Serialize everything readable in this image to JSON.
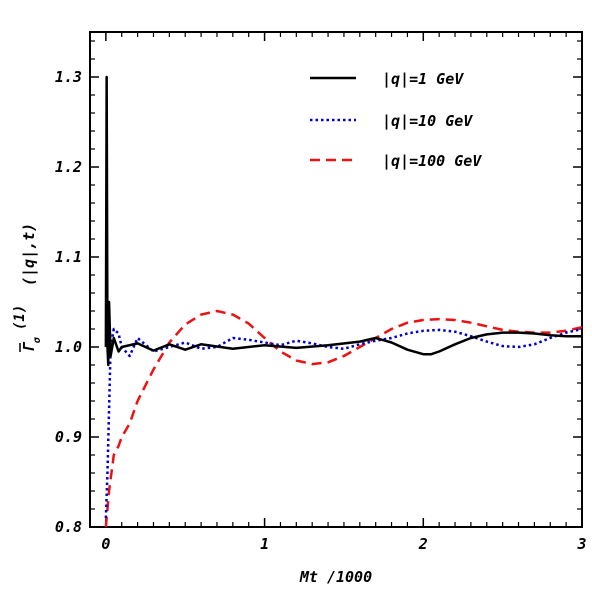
{
  "chart_data": {
    "type": "line",
    "xlabel": "Mt  /1000",
    "ylabel": "Γ̄ (1) (|q|,t)",
    "ylabel_parts": {
      "main": "Γ",
      "sub": "σ",
      "sup": "(1)",
      "args": "(|q|,t)"
    },
    "xlim": [
      -0.1,
      3.0
    ],
    "ylim": [
      0.8,
      1.35
    ],
    "x_ticks": [
      0,
      1,
      2,
      3
    ],
    "x_tick_labels": [
      "0",
      "1",
      "2",
      "3"
    ],
    "y_ticks": [
      0.8,
      0.9,
      1.0,
      1.1,
      1.2,
      1.3
    ],
    "y_tick_labels": [
      "0.8",
      "0.9",
      "1.0",
      "1.1",
      "1.2",
      "1.3"
    ],
    "grid": false,
    "legend_position": "top-right",
    "series": [
      {
        "name": "|q|=1  GeV",
        "color": "#000000",
        "style": "solid",
        "x": [
          0.0,
          0.005,
          0.01,
          0.015,
          0.02,
          0.03,
          0.05,
          0.08,
          0.1,
          0.2,
          0.3,
          0.4,
          0.5,
          0.6,
          0.8,
          1.0,
          1.2,
          1.4,
          1.6,
          1.7,
          1.8,
          1.9,
          2.0,
          2.05,
          2.1,
          2.2,
          2.3,
          2.4,
          2.5,
          2.6,
          2.7,
          2.8,
          2.9,
          3.0
        ],
        "y": [
          1.0,
          1.3,
          1.0,
          0.98,
          1.05,
          0.99,
          1.01,
          0.995,
          1.0,
          1.004,
          0.996,
          1.003,
          0.997,
          1.003,
          0.998,
          1.002,
          0.999,
          1.002,
          1.006,
          1.01,
          1.005,
          0.997,
          0.992,
          0.992,
          0.995,
          1.003,
          1.01,
          1.014,
          1.016,
          1.016,
          1.015,
          1.013,
          1.012,
          1.012
        ]
      },
      {
        "name": "|q|=10  GeV",
        "color": "#0000cc",
        "style": "dotted",
        "x": [
          0.0,
          0.01,
          0.02,
          0.03,
          0.05,
          0.08,
          0.1,
          0.15,
          0.2,
          0.3,
          0.4,
          0.5,
          0.6,
          0.7,
          0.8,
          0.9,
          1.0,
          1.1,
          1.2,
          1.3,
          1.4,
          1.5,
          1.6,
          1.7,
          1.8,
          1.9,
          2.0,
          2.1,
          2.2,
          2.3,
          2.4,
          2.5,
          2.6,
          2.7,
          2.8,
          2.9,
          3.0
        ],
        "y": [
          0.81,
          0.86,
          0.93,
          1.0,
          1.02,
          1.015,
          1.0,
          0.99,
          1.01,
          0.995,
          1.0,
          1.005,
          0.998,
          1.0,
          1.01,
          1.008,
          1.005,
          1.002,
          1.007,
          1.004,
          1.0,
          0.998,
          1.003,
          1.007,
          1.01,
          1.015,
          1.018,
          1.019,
          1.017,
          1.012,
          1.006,
          1.001,
          1.0,
          1.003,
          1.01,
          1.016,
          1.02
        ]
      },
      {
        "name": "|q|=100  GeV",
        "color": "#ee1111",
        "style": "dashed",
        "x": [
          0.0,
          0.02,
          0.05,
          0.08,
          0.1,
          0.15,
          0.2,
          0.3,
          0.4,
          0.5,
          0.6,
          0.7,
          0.8,
          0.9,
          1.0,
          1.1,
          1.2,
          1.3,
          1.4,
          1.5,
          1.6,
          1.7,
          1.8,
          1.9,
          2.0,
          2.1,
          2.2,
          2.3,
          2.4,
          2.5,
          2.6,
          2.7,
          2.8,
          2.9,
          3.0
        ],
        "y": [
          0.8,
          0.84,
          0.88,
          0.89,
          0.9,
          0.915,
          0.94,
          0.975,
          1.005,
          1.025,
          1.036,
          1.04,
          1.036,
          1.026,
          1.01,
          0.995,
          0.985,
          0.981,
          0.983,
          0.99,
          1.0,
          1.01,
          1.02,
          1.027,
          1.03,
          1.031,
          1.03,
          1.027,
          1.023,
          1.019,
          1.017,
          1.016,
          1.016,
          1.018,
          1.022
        ]
      }
    ]
  }
}
